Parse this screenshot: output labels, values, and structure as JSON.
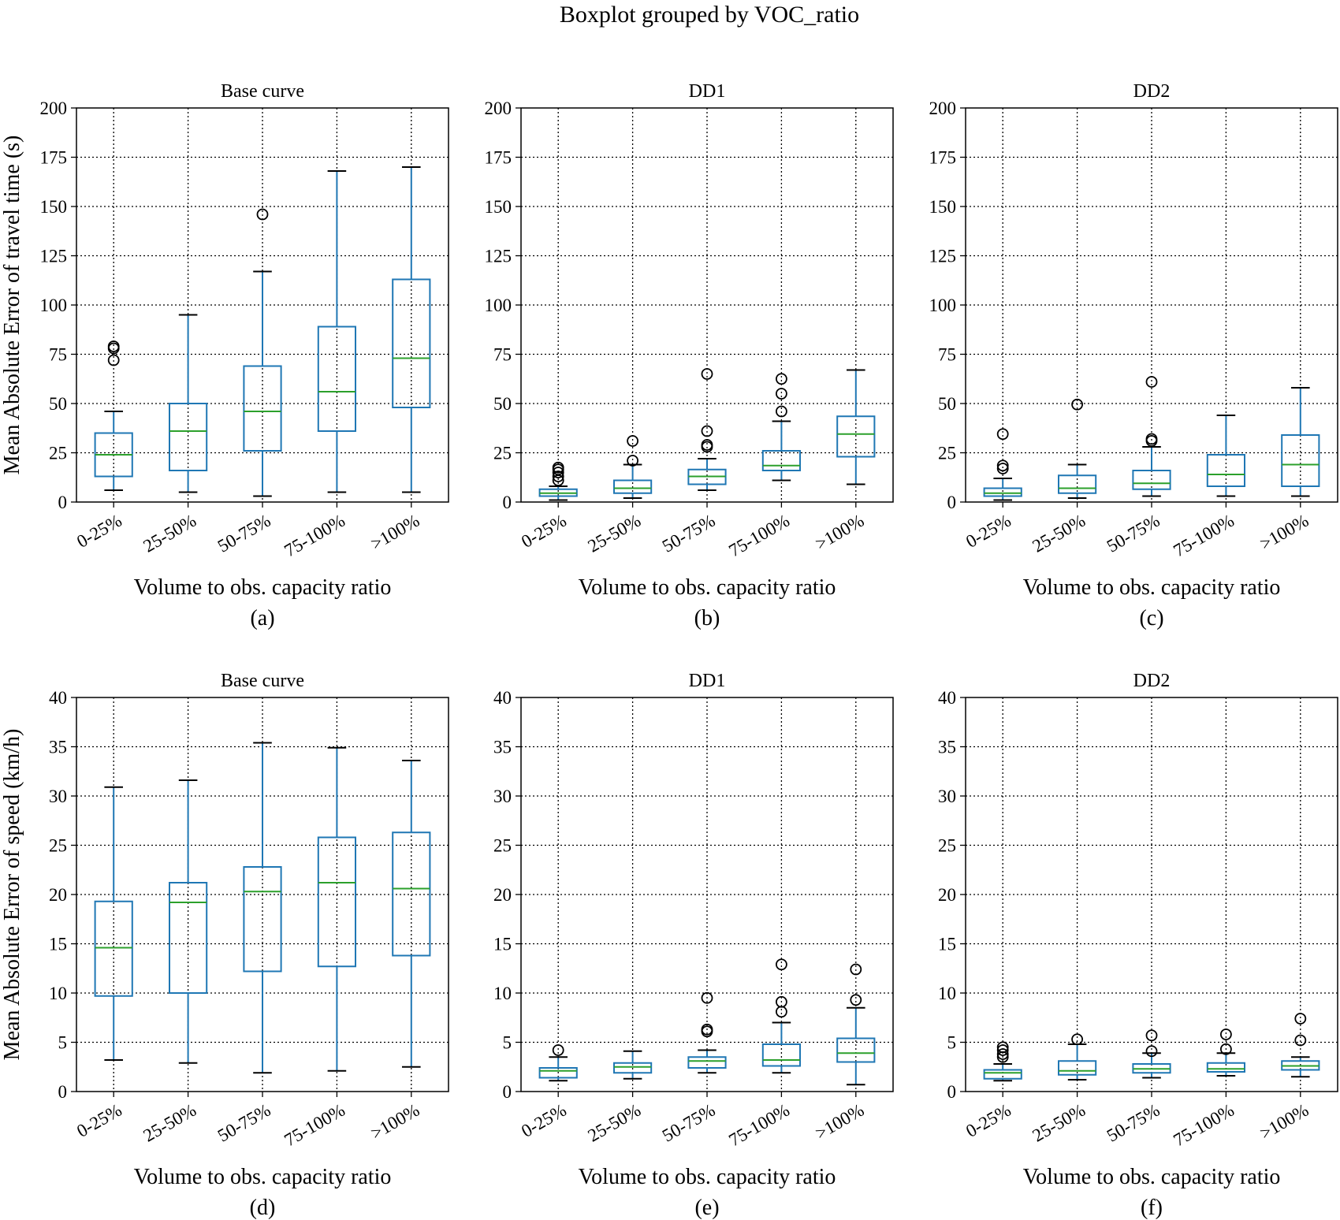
{
  "figure": {
    "suptitle": "Boxplot grouped by VOC_ratio",
    "box_color": "#1f77b4",
    "median_color": "#2ca02c",
    "flier_color": "#000000"
  },
  "chart_data": [
    {
      "type": "boxplot",
      "title": "Base curve",
      "panel_label": "(a)",
      "xlabel": "Volume to obs. capacity ratio",
      "ylabel": "Mean Absolute Error of travel time (s)",
      "ylim": [
        0,
        200
      ],
      "yticks": [
        0,
        25,
        50,
        75,
        100,
        125,
        150,
        175,
        200
      ],
      "grid": true,
      "categories": [
        "0-25%",
        "25-50%",
        "50-75%",
        "75-100%",
        ">100%"
      ],
      "boxes": [
        {
          "whislo": 6,
          "q1": 13,
          "med": 24,
          "q3": 35,
          "whishi": 46,
          "fliers": [
            72,
            78,
            79
          ]
        },
        {
          "whislo": 5,
          "q1": 16,
          "med": 36,
          "q3": 50,
          "whishi": 95,
          "fliers": []
        },
        {
          "whislo": 3,
          "q1": 26,
          "med": 46,
          "q3": 69,
          "whishi": 117,
          "fliers": [
            146
          ]
        },
        {
          "whislo": 5,
          "q1": 36,
          "med": 56,
          "q3": 89,
          "whishi": 168,
          "fliers": []
        },
        {
          "whislo": 5,
          "q1": 48,
          "med": 73,
          "q3": 113,
          "whishi": 170,
          "fliers": []
        }
      ]
    },
    {
      "type": "boxplot",
      "title": "DD1",
      "panel_label": "(b)",
      "xlabel": "Volume to obs. capacity ratio",
      "ylabel": "",
      "ylim": [
        0,
        200
      ],
      "yticks": [
        0,
        25,
        50,
        75,
        100,
        125,
        150,
        175,
        200
      ],
      "grid": true,
      "categories": [
        "0-25%",
        "25-50%",
        "50-75%",
        "75-100%",
        ">100%"
      ],
      "boxes": [
        {
          "whislo": 1,
          "q1": 3,
          "med": 4.5,
          "q3": 6.5,
          "whishi": 8,
          "fliers": [
            11,
            13,
            15,
            16.5,
            17.5
          ]
        },
        {
          "whislo": 2,
          "q1": 4.5,
          "med": 7,
          "q3": 11,
          "whishi": 19,
          "fliers": [
            21,
            31
          ]
        },
        {
          "whislo": 6,
          "q1": 9,
          "med": 13,
          "q3": 16.5,
          "whishi": 22,
          "fliers": [
            28,
            29,
            36,
            65
          ]
        },
        {
          "whislo": 11,
          "q1": 16,
          "med": 18.5,
          "q3": 26,
          "whishi": 41,
          "fliers": [
            46,
            55,
            62.5
          ]
        },
        {
          "whislo": 9,
          "q1": 23,
          "med": 34.5,
          "q3": 43.5,
          "whishi": 67,
          "fliers": []
        }
      ]
    },
    {
      "type": "boxplot",
      "title": "DD2",
      "panel_label": "(c)",
      "xlabel": "Volume to obs. capacity ratio",
      "ylabel": "",
      "ylim": [
        0,
        200
      ],
      "yticks": [
        0,
        25,
        50,
        75,
        100,
        125,
        150,
        175,
        200
      ],
      "grid": true,
      "categories": [
        "0-25%",
        "25-50%",
        "50-75%",
        "75-100%",
        ">100%"
      ],
      "boxes": [
        {
          "whislo": 1,
          "q1": 3,
          "med": 4.5,
          "q3": 7,
          "whishi": 12,
          "fliers": [
            17,
            18.5,
            34.5
          ]
        },
        {
          "whislo": 2,
          "q1": 4.5,
          "med": 7,
          "q3": 13.5,
          "whishi": 19,
          "fliers": [
            49.5
          ]
        },
        {
          "whislo": 3,
          "q1": 6.5,
          "med": 9.5,
          "q3": 16,
          "whishi": 28,
          "fliers": [
            31,
            32,
            61
          ]
        },
        {
          "whislo": 3,
          "q1": 8,
          "med": 14,
          "q3": 24,
          "whishi": 44,
          "fliers": []
        },
        {
          "whislo": 3,
          "q1": 8,
          "med": 19,
          "q3": 34,
          "whishi": 58,
          "fliers": []
        }
      ]
    },
    {
      "type": "boxplot",
      "title": "Base curve",
      "panel_label": "(d)",
      "xlabel": "Volume to obs. capacity ratio",
      "ylabel": "Mean Absolute Error of speed (km/h)",
      "ylim": [
        0,
        40
      ],
      "yticks": [
        0,
        5,
        10,
        15,
        20,
        25,
        30,
        35,
        40
      ],
      "grid": true,
      "categories": [
        "0-25%",
        "25-50%",
        "50-75%",
        "75-100%",
        ">100%"
      ],
      "boxes": [
        {
          "whislo": 3.2,
          "q1": 9.7,
          "med": 14.6,
          "q3": 19.3,
          "whishi": 30.9,
          "fliers": []
        },
        {
          "whislo": 2.9,
          "q1": 10,
          "med": 19.2,
          "q3": 21.2,
          "whishi": 31.6,
          "fliers": []
        },
        {
          "whislo": 1.9,
          "q1": 12.2,
          "med": 20.3,
          "q3": 22.8,
          "whishi": 35.4,
          "fliers": []
        },
        {
          "whislo": 2.1,
          "q1": 12.7,
          "med": 21.2,
          "q3": 25.8,
          "whishi": 34.9,
          "fliers": []
        },
        {
          "whislo": 2.5,
          "q1": 13.8,
          "med": 20.6,
          "q3": 26.3,
          "whishi": 33.6,
          "fliers": []
        }
      ]
    },
    {
      "type": "boxplot",
      "title": "DD1",
      "panel_label": "(e)",
      "xlabel": "Volume to obs. capacity ratio",
      "ylabel": "",
      "ylim": [
        0,
        40
      ],
      "yticks": [
        0,
        5,
        10,
        15,
        20,
        25,
        30,
        35,
        40
      ],
      "grid": true,
      "categories": [
        "0-25%",
        "25-50%",
        "50-75%",
        "75-100%",
        ">100%"
      ],
      "boxes": [
        {
          "whislo": 1.1,
          "q1": 1.4,
          "med": 2.1,
          "q3": 2.4,
          "whishi": 3.5,
          "fliers": [
            4.2
          ]
        },
        {
          "whislo": 1.3,
          "q1": 1.9,
          "med": 2.5,
          "q3": 2.9,
          "whishi": 4.1,
          "fliers": []
        },
        {
          "whislo": 1.9,
          "q1": 2.4,
          "med": 3.1,
          "q3": 3.5,
          "whishi": 4.2,
          "fliers": [
            6.1,
            6.3,
            9.5
          ]
        },
        {
          "whislo": 1.9,
          "q1": 2.6,
          "med": 3.2,
          "q3": 4.8,
          "whishi": 7,
          "fliers": [
            8.1,
            9.1,
            12.9
          ]
        },
        {
          "whislo": 0.7,
          "q1": 3,
          "med": 3.9,
          "q3": 5.4,
          "whishi": 8.5,
          "fliers": [
            9.3,
            12.4
          ]
        }
      ]
    },
    {
      "type": "boxplot",
      "title": "DD2",
      "panel_label": "(f)",
      "xlabel": "Volume to obs. capacity ratio",
      "ylabel": "",
      "ylim": [
        0,
        40
      ],
      "yticks": [
        0,
        5,
        10,
        15,
        20,
        25,
        30,
        35,
        40
      ],
      "grid": true,
      "categories": [
        "0-25%",
        "25-50%",
        "50-75%",
        "75-100%",
        ">100%"
      ],
      "boxes": [
        {
          "whislo": 1.1,
          "q1": 1.3,
          "med": 1.9,
          "q3": 2.2,
          "whishi": 2.8,
          "fliers": [
            3.5,
            3.8,
            4.2,
            4.5
          ]
        },
        {
          "whislo": 1.2,
          "q1": 1.7,
          "med": 2.1,
          "q3": 3.1,
          "whishi": 4.8,
          "fliers": [
            5.3
          ]
        },
        {
          "whislo": 1.4,
          "q1": 1.9,
          "med": 2.3,
          "q3": 2.8,
          "whishi": 3.9,
          "fliers": [
            4.1,
            5.7
          ]
        },
        {
          "whislo": 1.6,
          "q1": 2,
          "med": 2.3,
          "q3": 2.9,
          "whishi": 3.9,
          "fliers": [
            4.3,
            5.8
          ]
        },
        {
          "whislo": 1.5,
          "q1": 2.2,
          "med": 2.6,
          "q3": 3.1,
          "whishi": 3.5,
          "fliers": [
            5.2,
            7.4
          ]
        }
      ]
    }
  ]
}
